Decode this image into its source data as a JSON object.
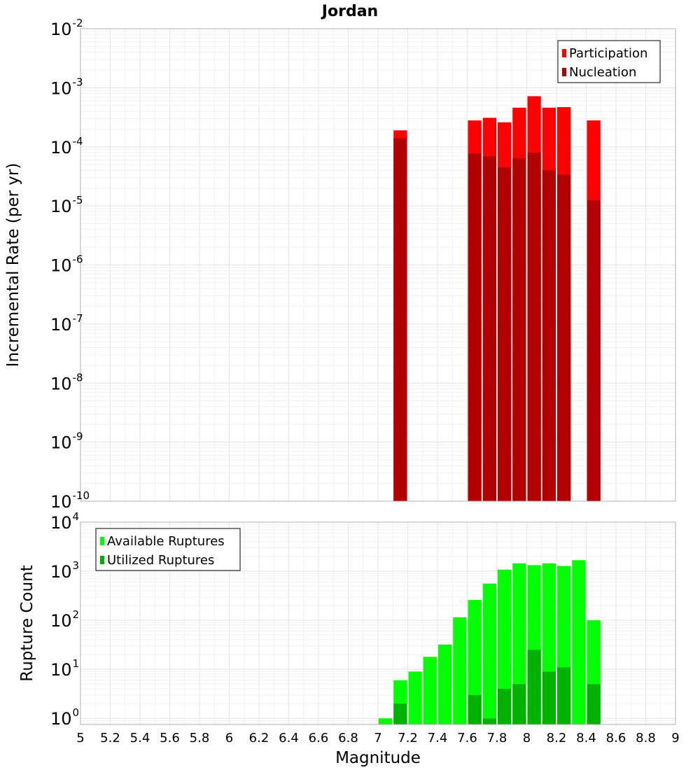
{
  "chart_data": [
    {
      "type": "bar",
      "title": "Jordan",
      "xlabel": "",
      "ylabel": "Incremental Rate (per yr)",
      "yscale": "log",
      "ylim": [
        1e-10,
        0.01
      ],
      "xlim": [
        5,
        9
      ],
      "grid": true,
      "legend_position": "top-right",
      "y_ticks": [
        {
          "base": "10",
          "exp": "-10"
        },
        {
          "base": "10",
          "exp": "-9"
        },
        {
          "base": "10",
          "exp": "-8"
        },
        {
          "base": "10",
          "exp": "-7"
        },
        {
          "base": "10",
          "exp": "-6"
        },
        {
          "base": "10",
          "exp": "-5"
        },
        {
          "base": "10",
          "exp": "-4"
        },
        {
          "base": "10",
          "exp": "-3"
        },
        {
          "base": "10",
          "exp": "-2"
        }
      ],
      "bin_width": 0.1,
      "series": [
        {
          "name": "Participation",
          "color": "#ff0000",
          "x": [
            7.15,
            7.65,
            7.75,
            7.85,
            7.95,
            8.05,
            8.15,
            8.25,
            8.45
          ],
          "values": [
            0.00019,
            0.00028,
            0.00031,
            0.00026,
            0.00046,
            0.00072,
            0.00046,
            0.00047,
            0.00028
          ]
        },
        {
          "name": "Nucleation",
          "color": "#b20000",
          "x": [
            7.15,
            7.65,
            7.75,
            7.85,
            7.95,
            8.05,
            8.15,
            8.25,
            8.45
          ],
          "values": [
            0.00014,
            7.7e-05,
            6.9e-05,
            4.5e-05,
            6.4e-05,
            8e-05,
            4e-05,
            3.4e-05,
            1.25e-05
          ]
        }
      ]
    },
    {
      "type": "bar",
      "title": "",
      "xlabel": "Magnitude",
      "ylabel": "Rupture Count",
      "yscale": "log",
      "ylim": [
        0.75,
        10000
      ],
      "xlim": [
        5,
        9
      ],
      "grid": true,
      "legend_position": "top-left",
      "y_ticks": [
        {
          "base": "10",
          "exp": "0"
        },
        {
          "base": "10",
          "exp": "1"
        },
        {
          "base": "10",
          "exp": "2"
        },
        {
          "base": "10",
          "exp": "3"
        },
        {
          "base": "10",
          "exp": "4"
        }
      ],
      "x_ticks": [
        "5",
        "5.2",
        "5.4",
        "5.6",
        "5.8",
        "6",
        "6.2",
        "6.4",
        "6.6",
        "6.8",
        "7",
        "7.2",
        "7.4",
        "7.6",
        "7.8",
        "8",
        "8.2",
        "8.4",
        "8.6",
        "8.8",
        "9"
      ],
      "bin_width": 0.1,
      "series": [
        {
          "name": "Available Ruptures",
          "color": "#00ff00",
          "x": [
            7.05,
            7.15,
            7.25,
            7.35,
            7.45,
            7.55,
            7.65,
            7.75,
            7.85,
            7.95,
            8.05,
            8.15,
            8.25,
            8.35,
            8.45
          ],
          "values": [
            1,
            6,
            9,
            18,
            32,
            115,
            260,
            560,
            1080,
            1450,
            1330,
            1450,
            1280,
            1680,
            100
          ]
        },
        {
          "name": "Utilized Ruptures",
          "color": "#00b200",
          "x": [
            7.15,
            7.65,
            7.75,
            7.85,
            7.95,
            8.05,
            8.15,
            8.25,
            8.45
          ],
          "values": [
            2,
            3,
            1,
            4,
            5,
            25,
            9,
            11,
            5
          ]
        }
      ]
    }
  ]
}
